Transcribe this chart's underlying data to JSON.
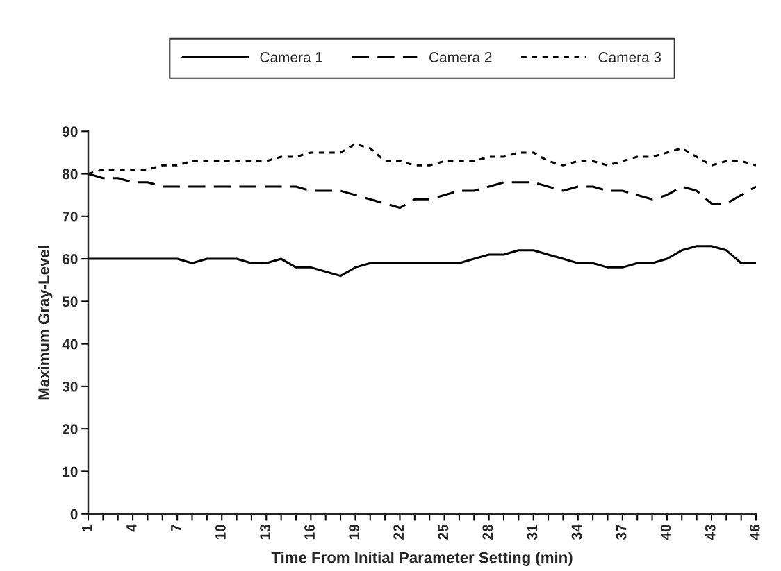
{
  "chart_data": {
    "type": "line",
    "xlabel": "Time From Initial Parameter Setting (min)",
    "ylabel": "Maximum Gray-Level",
    "categories": [
      "1",
      null,
      null,
      "4",
      null,
      null,
      "7",
      null,
      null,
      "10",
      null,
      null,
      "13",
      null,
      null,
      "16",
      null,
      null,
      "19",
      null,
      null,
      "22",
      null,
      null,
      "25",
      null,
      null,
      "28",
      null,
      null,
      "31",
      null,
      null,
      "34",
      null,
      null,
      "37",
      null,
      null,
      "40",
      null,
      null,
      "43",
      null,
      null,
      "46"
    ],
    "series": [
      {
        "name": "Camera 1",
        "color": "#000000",
        "line_style": "solid",
        "values": [
          60,
          60,
          60,
          60,
          60,
          60,
          60,
          59,
          60,
          60,
          60,
          59,
          59,
          60,
          58,
          58,
          57,
          56,
          58,
          59,
          59,
          59,
          59,
          59,
          59,
          59,
          60,
          61,
          61,
          62,
          62,
          61,
          60,
          59,
          59,
          58,
          58,
          59,
          59,
          60,
          62,
          63,
          63,
          62,
          59,
          59
        ]
      },
      {
        "name": "Camera 2",
        "color": "#000000",
        "line_style": "dashed",
        "values": [
          80,
          79,
          79,
          78,
          78,
          77,
          77,
          77,
          77,
          77,
          77,
          77,
          77,
          77,
          77,
          76,
          76,
          76,
          75,
          74,
          73,
          72,
          74,
          74,
          75,
          76,
          76,
          77,
          78,
          78,
          78,
          77,
          76,
          77,
          77,
          76,
          76,
          75,
          74,
          75,
          77,
          76,
          73,
          73,
          75,
          77
        ]
      },
      {
        "name": "Camera 3",
        "color": "#000000",
        "line_style": "dotted",
        "values": [
          80,
          81,
          81,
          81,
          81,
          82,
          82,
          83,
          83,
          83,
          83,
          83,
          83,
          84,
          84,
          85,
          85,
          85,
          87,
          86,
          83,
          83,
          82,
          82,
          83,
          83,
          83,
          84,
          84,
          85,
          85,
          83,
          82,
          83,
          83,
          82,
          83,
          84,
          84,
          85,
          86,
          84,
          82,
          83,
          83,
          82
        ]
      }
    ],
    "ylim": [
      0,
      90
    ],
    "yticks": [
      0,
      10,
      20,
      30,
      40,
      50,
      60,
      70,
      80,
      90
    ],
    "grid": false,
    "legend": "top"
  }
}
